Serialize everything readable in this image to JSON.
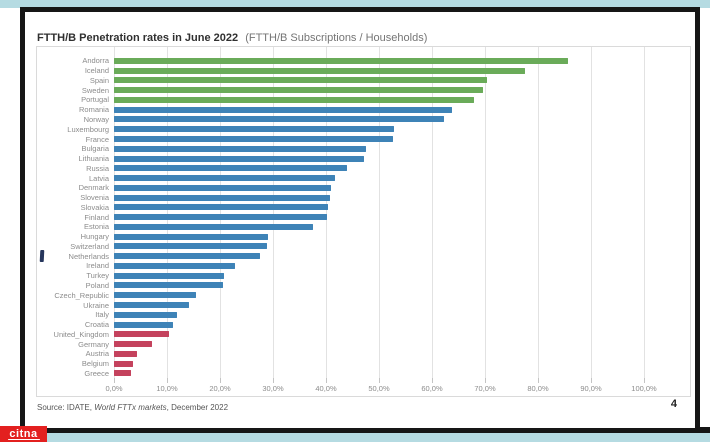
{
  "page": {
    "title_bold": "FTTH/B Penetration rates in June 2022",
    "title_regular": "(FTTH/B Subscriptions / Households)",
    "source_prefix": "Source: IDATE, ",
    "source_italic": "World FTTx markets",
    "source_suffix": ", December 2022",
    "page_number": "4",
    "watermark_text": "citna"
  },
  "colors": {
    "green": "#6aab59",
    "blue": "#3e83b7",
    "red": "#c4425d",
    "strip": "#b5dbe2",
    "frame": "#161616",
    "logo_red": "#e3201f"
  },
  "chart_data": {
    "type": "bar",
    "orientation": "horizontal",
    "title": "FTTH/B Penetration rates in June 2022 (FTTH/B Subscriptions / Households)",
    "xlabel": "",
    "ylabel": "",
    "xlim": [
      0,
      100
    ],
    "grid": true,
    "legend": "none",
    "x_tick_values": [
      0,
      10,
      20,
      30,
      40,
      50,
      60,
      70,
      80,
      90,
      100
    ],
    "x_tick_labels": [
      "0,0%",
      "10,0%",
      "20,0%",
      "30,0%",
      "40,0%",
      "50,0%",
      "60,0%",
      "70,0%",
      "80,0%",
      "90,0%",
      "100,0%"
    ],
    "unit": "%",
    "points": [
      {
        "label": "Andorra",
        "value": 85.6,
        "group": "green"
      },
      {
        "label": "Iceland",
        "value": 77.5,
        "group": "green"
      },
      {
        "label": "Spain",
        "value": 70.4,
        "group": "green"
      },
      {
        "label": "Sweden",
        "value": 69.6,
        "group": "green"
      },
      {
        "label": "Portugal",
        "value": 67.9,
        "group": "green"
      },
      {
        "label": "Romania",
        "value": 63.8,
        "group": "blue"
      },
      {
        "label": "Norway",
        "value": 62.2,
        "group": "blue"
      },
      {
        "label": "Luxembourg",
        "value": 52.8,
        "group": "blue"
      },
      {
        "label": "France",
        "value": 52.7,
        "group": "blue"
      },
      {
        "label": "Bulgaria",
        "value": 47.5,
        "group": "blue"
      },
      {
        "label": "Lithuania",
        "value": 47.1,
        "group": "blue"
      },
      {
        "label": "Russia",
        "value": 43.9,
        "group": "blue"
      },
      {
        "label": "Latvia",
        "value": 41.7,
        "group": "blue"
      },
      {
        "label": "Denmark",
        "value": 41.0,
        "group": "blue"
      },
      {
        "label": "Slovenia",
        "value": 40.8,
        "group": "blue"
      },
      {
        "label": "Slovakia",
        "value": 40.4,
        "group": "blue"
      },
      {
        "label": "Finland",
        "value": 40.2,
        "group": "blue"
      },
      {
        "label": "Estonia",
        "value": 37.5,
        "group": "blue"
      },
      {
        "label": "Hungary",
        "value": 29.0,
        "group": "blue"
      },
      {
        "label": "Switzerland",
        "value": 28.9,
        "group": "blue"
      },
      {
        "label": "Netherlands",
        "value": 27.6,
        "group": "blue"
      },
      {
        "label": "Ireland",
        "value": 22.9,
        "group": "blue"
      },
      {
        "label": "Turkey",
        "value": 20.8,
        "group": "blue"
      },
      {
        "label": "Poland",
        "value": 20.6,
        "group": "blue"
      },
      {
        "label": "Czech_Republic",
        "value": 15.5,
        "group": "blue"
      },
      {
        "label": "Ukraine",
        "value": 14.1,
        "group": "blue"
      },
      {
        "label": "Italy",
        "value": 11.9,
        "group": "blue"
      },
      {
        "label": "Croatia",
        "value": 11.1,
        "group": "blue"
      },
      {
        "label": "United_Kingdom",
        "value": 10.4,
        "group": "red"
      },
      {
        "label": "Germany",
        "value": 7.2,
        "group": "red"
      },
      {
        "label": "Austria",
        "value": 4.3,
        "group": "red"
      },
      {
        "label": "Belgium",
        "value": 3.5,
        "group": "red"
      },
      {
        "label": "Greece",
        "value": 3.3,
        "group": "red"
      }
    ]
  }
}
